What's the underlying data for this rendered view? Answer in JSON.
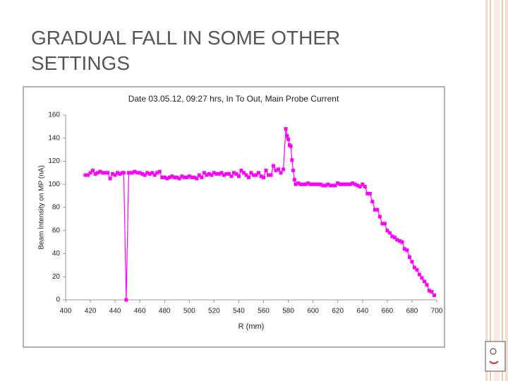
{
  "slide_title": "GRADUAL FALL IN SOME OTHER SETTINGS",
  "chart_data": {
    "type": "line",
    "title": "Date 03.05.12, 09:27 hrs, In To Out, Main Probe Current",
    "x_label": "R (mm)",
    "y_label": "Beam Intensity on MP (nA)",
    "color": "#ff00ff",
    "grid": false,
    "xlim": [
      400,
      700
    ],
    "xticks": [
      400,
      420,
      440,
      460,
      480,
      500,
      520,
      540,
      560,
      580,
      600,
      620,
      640,
      660,
      680,
      700
    ],
    "ylim": [
      0,
      160
    ],
    "yticks": [
      0,
      20,
      40,
      60,
      80,
      100,
      120,
      140,
      160
    ],
    "x": [
      416,
      418,
      420,
      422,
      424,
      426,
      428,
      430,
      432,
      434,
      436,
      438,
      440,
      442,
      444,
      446,
      447,
      449,
      451,
      452,
      454,
      456,
      458,
      460,
      462,
      464,
      466,
      468,
      470,
      472,
      474,
      476,
      478,
      480,
      482,
      484,
      486,
      488,
      490,
      492,
      494,
      496,
      498,
      500,
      502,
      504,
      506,
      508,
      510,
      512,
      514,
      516,
      518,
      520,
      522,
      524,
      526,
      528,
      530,
      532,
      534,
      536,
      538,
      540,
      542,
      544,
      546,
      548,
      550,
      552,
      554,
      556,
      558,
      560,
      562,
      564,
      566,
      568,
      570,
      572,
      574,
      576,
      578,
      579,
      580,
      581,
      582,
      583,
      584,
      585,
      586,
      588,
      590,
      592,
      594,
      596,
      598,
      600,
      602,
      604,
      606,
      608,
      610,
      612,
      614,
      616,
      618,
      620,
      622,
      624,
      626,
      628,
      630,
      632,
      634,
      636,
      638,
      640,
      642,
      644,
      646,
      648,
      650,
      652,
      654,
      656,
      658,
      660,
      662,
      664,
      666,
      668,
      670,
      672,
      674,
      676,
      678,
      680,
      682,
      684,
      686,
      688,
      690,
      692,
      694,
      696,
      698
    ],
    "values": [
      108,
      108,
      110,
      112,
      109,
      110,
      111,
      110,
      110,
      110,
      105,
      109,
      108,
      110,
      109,
      110,
      110,
      0,
      110,
      110,
      110,
      111,
      110,
      110,
      109,
      108,
      110,
      109,
      110,
      108,
      110,
      111,
      106,
      106,
      105,
      106,
      107,
      106,
      106,
      105,
      107,
      106,
      106,
      107,
      106,
      106,
      105,
      108,
      106,
      110,
      108,
      109,
      108,
      110,
      109,
      109,
      110,
      108,
      109,
      109,
      107,
      110,
      109,
      107,
      112,
      110,
      108,
      106,
      110,
      108,
      108,
      110,
      107,
      106,
      112,
      108,
      108,
      116,
      112,
      113,
      110,
      113,
      148,
      142,
      139,
      134,
      133,
      121,
      112,
      104,
      100,
      101,
      100,
      100,
      100,
      101,
      100,
      100,
      100,
      100,
      100,
      99,
      99,
      100,
      99,
      99,
      99,
      101,
      100,
      100,
      100,
      100,
      100,
      101,
      100,
      99,
      98,
      100,
      98,
      92,
      92,
      85,
      78,
      78,
      72,
      66,
      66,
      60,
      58,
      55,
      54,
      52,
      51,
      50,
      44,
      43,
      37,
      33,
      28,
      26,
      22,
      19,
      16,
      13,
      8,
      7,
      4
    ]
  }
}
